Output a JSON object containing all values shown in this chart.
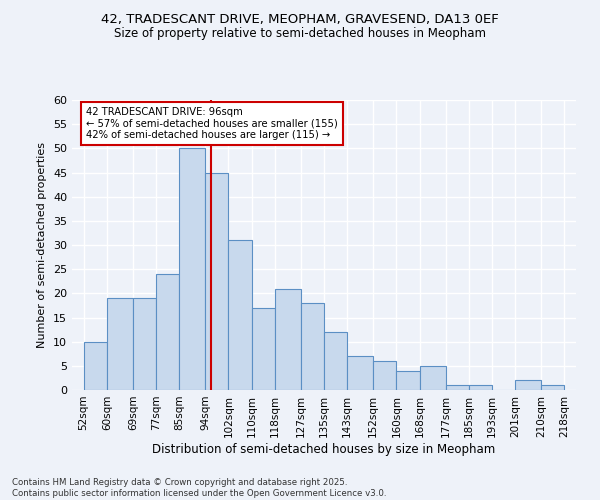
{
  "title1": "42, TRADESCANT DRIVE, MEOPHAM, GRAVESEND, DA13 0EF",
  "title2": "Size of property relative to semi-detached houses in Meopham",
  "xlabel": "Distribution of semi-detached houses by size in Meopham",
  "ylabel": "Number of semi-detached properties",
  "footnote1": "Contains HM Land Registry data © Crown copyright and database right 2025.",
  "footnote2": "Contains public sector information licensed under the Open Government Licence v3.0.",
  "annotation_title": "42 TRADESCANT DRIVE: 96sqm",
  "annotation_line1": "← 57% of semi-detached houses are smaller (155)",
  "annotation_line2": "42% of semi-detached houses are larger (115) →",
  "property_size": 96,
  "bar_left_edges": [
    52,
    60,
    69,
    77,
    85,
    94,
    102,
    110,
    118,
    127,
    135,
    143,
    152,
    160,
    168,
    177,
    185,
    193,
    201,
    210
  ],
  "bar_widths": [
    8,
    9,
    8,
    8,
    9,
    8,
    8,
    8,
    9,
    8,
    8,
    9,
    8,
    8,
    9,
    8,
    8,
    8,
    9,
    8
  ],
  "bar_heights": [
    10,
    19,
    19,
    24,
    50,
    45,
    31,
    17,
    21,
    18,
    12,
    7,
    6,
    4,
    5,
    1,
    1,
    0,
    2,
    1
  ],
  "tick_labels": [
    "52sqm",
    "60sqm",
    "69sqm",
    "77sqm",
    "85sqm",
    "94sqm",
    "102sqm",
    "110sqm",
    "118sqm",
    "127sqm",
    "135sqm",
    "143sqm",
    "152sqm",
    "160sqm",
    "168sqm",
    "177sqm",
    "185sqm",
    "193sqm",
    "201sqm",
    "210sqm",
    "218sqm"
  ],
  "tick_positions": [
    52,
    60,
    69,
    77,
    85,
    94,
    102,
    110,
    118,
    127,
    135,
    143,
    152,
    160,
    168,
    177,
    185,
    193,
    201,
    210,
    218
  ],
  "bar_color": "#c8d9ed",
  "bar_edge_color": "#5b8fc4",
  "red_line_color": "#cc0000",
  "background_color": "#eef2f9",
  "grid_color": "#ffffff",
  "ylim": [
    0,
    60
  ],
  "yticks": [
    0,
    5,
    10,
    15,
    20,
    25,
    30,
    35,
    40,
    45,
    50,
    55,
    60
  ],
  "xlim": [
    48,
    222
  ]
}
